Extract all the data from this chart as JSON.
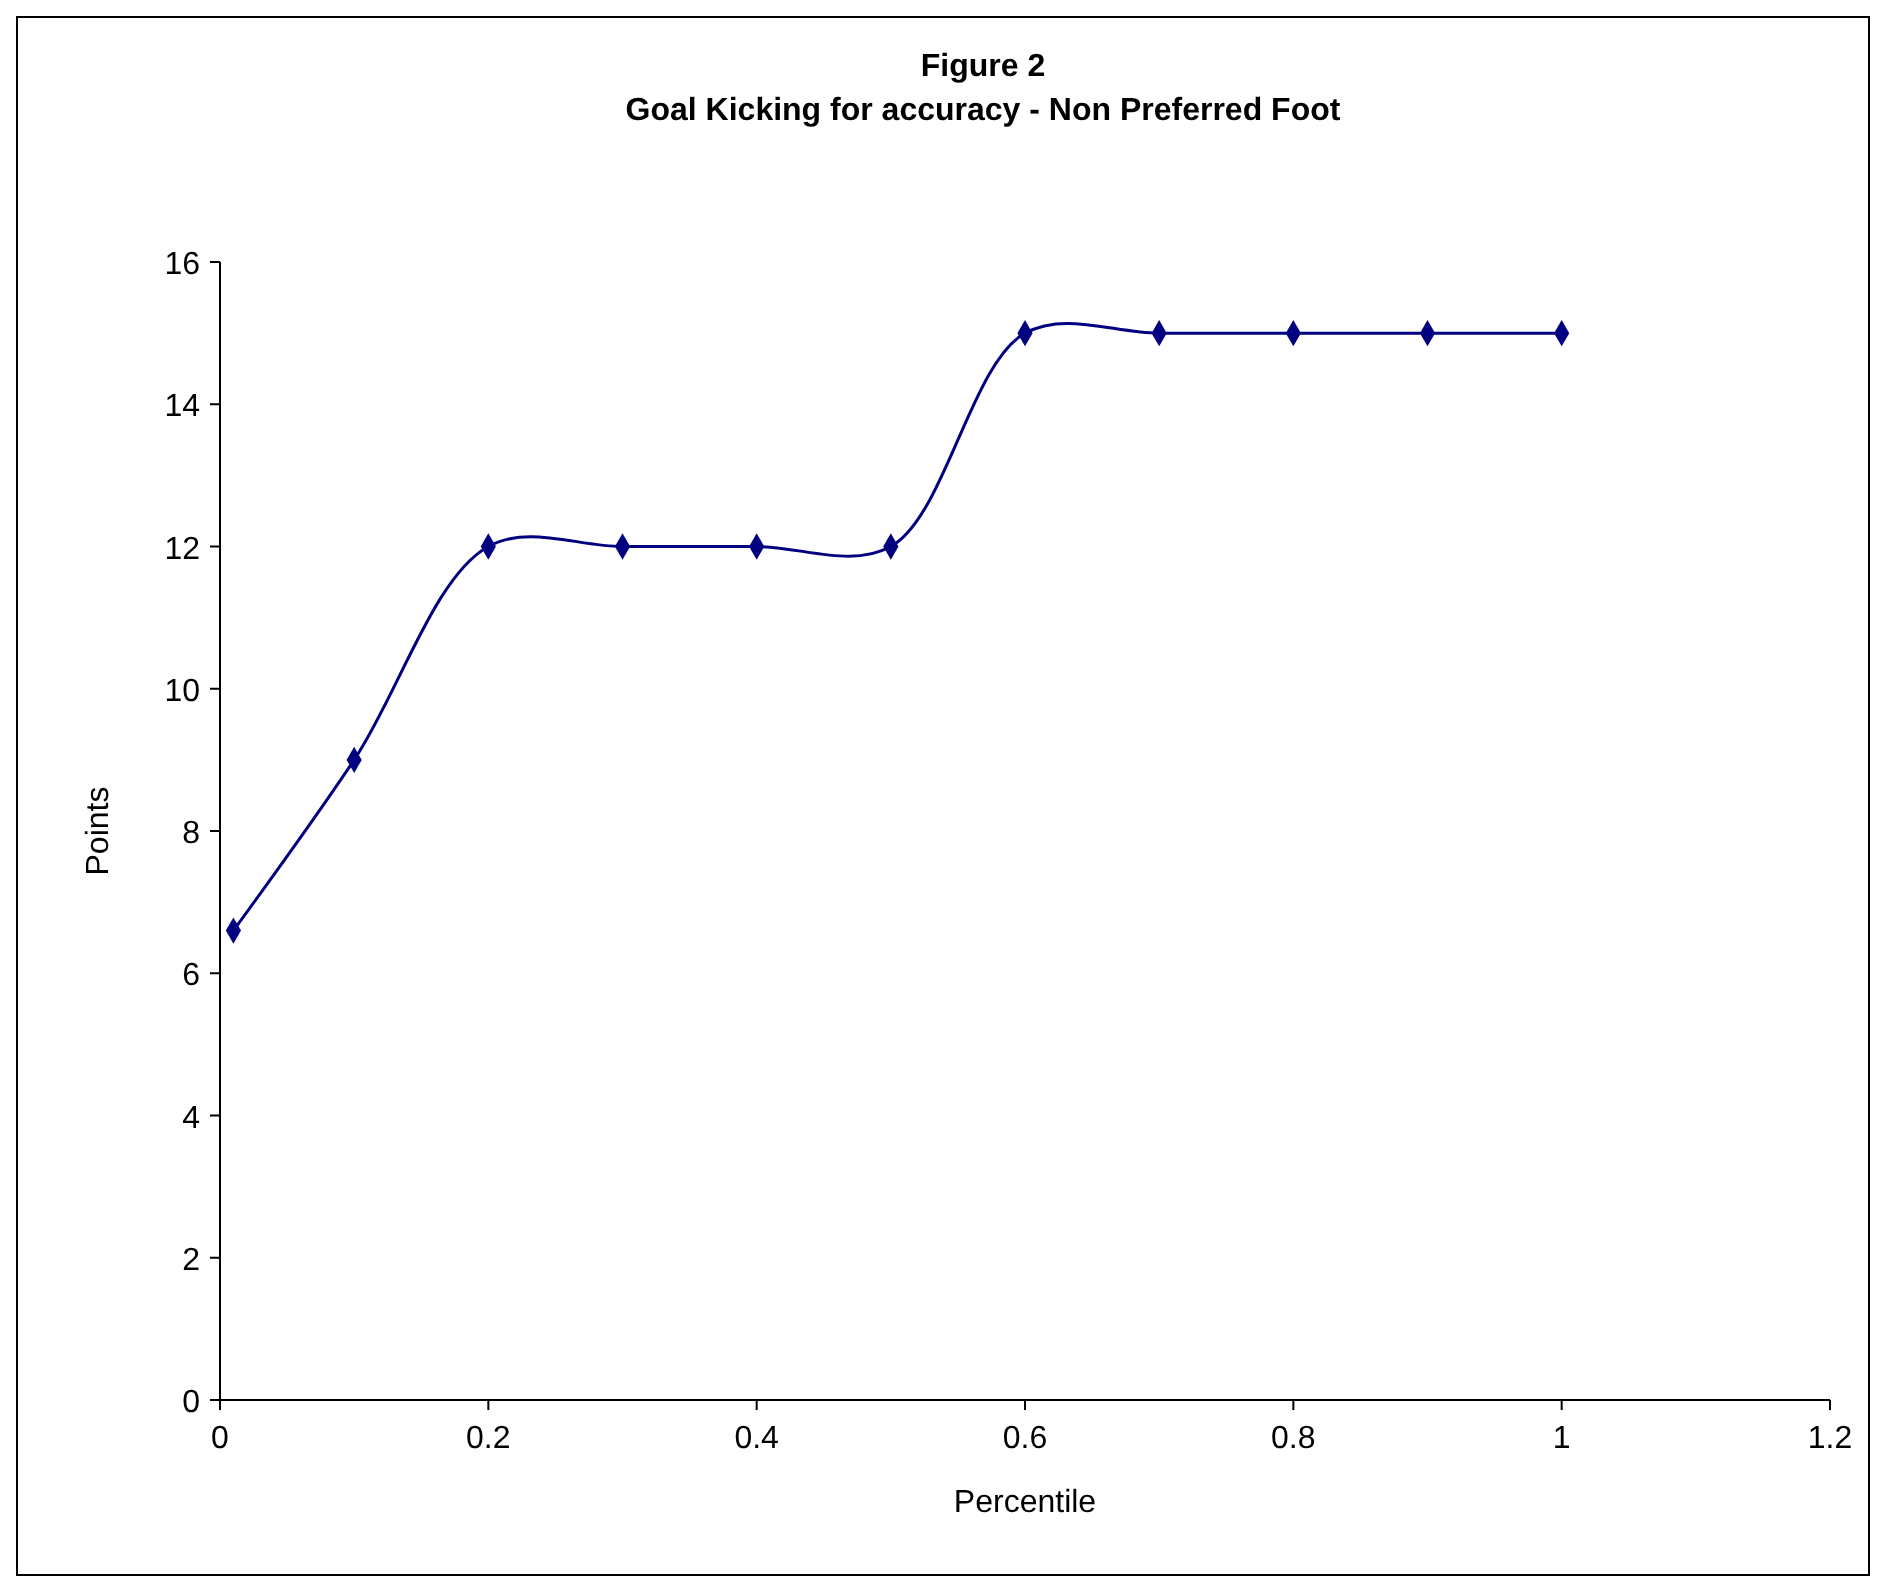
{
  "chart_data": {
    "type": "line",
    "title": "Figure 2",
    "subtitle": "Goal Kicking for accuracy - Non Preferred Foot",
    "xlabel": "Percentile",
    "ylabel": "Points",
    "x": [
      0.01,
      0.1,
      0.2,
      0.3,
      0.4,
      0.5,
      0.6,
      0.7,
      0.8,
      0.9,
      1
    ],
    "series": [
      {
        "color": "#000080",
        "values": [
          6.6,
          9,
          12,
          12,
          12,
          12,
          15,
          15,
          15,
          15,
          15
        ]
      }
    ],
    "xlim": [
      0,
      1.2
    ],
    "xticks": [
      0,
      0.2,
      0.4,
      0.6,
      0.8,
      1,
      1.2
    ],
    "ylim": [
      0,
      16
    ],
    "yticks": [
      0,
      2,
      4,
      6,
      8,
      10,
      12,
      14,
      16
    ],
    "grid": false,
    "marker": "diamond",
    "line_style": "solid"
  }
}
